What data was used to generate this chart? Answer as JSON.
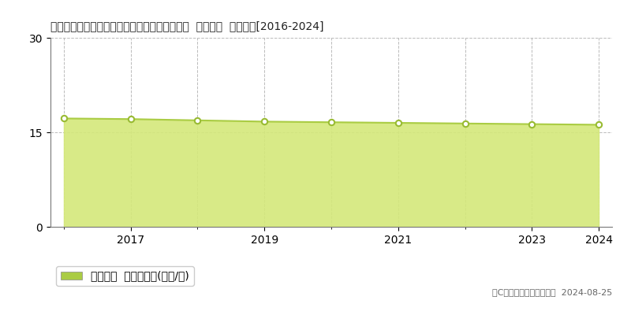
{
  "title": "高知県土佐市高岡町字西地頭名甲９０９番４外  地価公示  地価推移[2016-2024]",
  "years": [
    2016,
    2017,
    2018,
    2019,
    2020,
    2021,
    2022,
    2023,
    2024
  ],
  "values": [
    17.2,
    17.1,
    16.9,
    16.7,
    16.6,
    16.5,
    16.4,
    16.3,
    16.2
  ],
  "line_color": "#aacc44",
  "fill_color": "#d4e87a",
  "fill_alpha": 0.9,
  "marker_color": "white",
  "marker_edge_color": "#99bb33",
  "ylim": [
    0,
    30
  ],
  "yticks": [
    0,
    15,
    30
  ],
  "xtick_labels": [
    "2017",
    "2019",
    "2021",
    "2023",
    "2024"
  ],
  "xtick_positions": [
    2017,
    2019,
    2021,
    2023,
    2024
  ],
  "grid_color": "#aaaaaa",
  "background_color": "#ffffff",
  "legend_label": "地価公示  平均坪単価(万円/坪)",
  "legend_marker_color": "#aacc44",
  "copyright_text": "（C）土地価格ドットコム  2024-08-25",
  "title_fontsize": 12,
  "axis_fontsize": 10,
  "legend_fontsize": 10
}
